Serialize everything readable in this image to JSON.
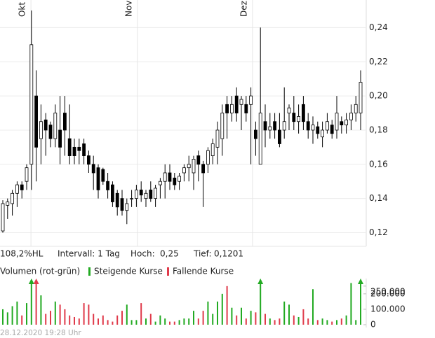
{
  "chart_data": {
    "type": "candlestick",
    "ylim": [
      0.112,
      0.25
    ],
    "yticks": [
      {
        "value": 0.12,
        "label": "0,12"
      },
      {
        "value": 0.14,
        "label": "0,14"
      },
      {
        "value": 0.16,
        "label": "0,16"
      },
      {
        "value": 0.18,
        "label": "0,18"
      },
      {
        "value": 0.2,
        "label": "0,20"
      },
      {
        "value": 0.22,
        "label": "0,22"
      },
      {
        "value": 0.24,
        "label": "0,24"
      }
    ],
    "xticks": [
      {
        "value": 5.9,
        "label": "Okt"
      },
      {
        "value": 28.2,
        "label": "Nov"
      },
      {
        "value": 52.35,
        "label": "Dez"
      }
    ],
    "open": [
      0.121,
      0.136,
      0.137,
      0.143,
      0.148,
      0.15,
      0.16,
      0.2,
      0.175,
      0.186,
      0.183,
      0.175,
      0.18,
      0.19,
      0.175,
      0.17,
      0.17,
      0.172,
      0.165,
      0.16,
      0.158,
      0.157,
      0.15,
      0.148,
      0.143,
      0.14,
      0.133,
      0.14,
      0.14,
      0.145,
      0.14,
      0.145,
      0.14,
      0.148,
      0.15,
      0.155,
      0.152,
      0.15,
      0.155,
      0.158,
      0.155,
      0.165,
      0.16,
      0.16,
      0.165,
      0.17,
      0.175,
      0.195,
      0.19,
      0.2,
      0.195,
      0.195,
      0.195,
      0.18,
      0.16,
      0.185,
      0.18,
      0.185,
      0.18,
      0.18,
      0.19,
      0.19,
      0.185,
      0.195,
      0.185,
      0.18,
      0.182,
      0.176,
      0.18,
      0.183,
      0.18,
      0.185,
      0.183,
      0.186,
      0.19,
      0.19
    ],
    "high": [
      0.139,
      0.14,
      0.145,
      0.15,
      0.15,
      0.16,
      0.25,
      0.215,
      0.195,
      0.19,
      0.185,
      0.195,
      0.2,
      0.2,
      0.195,
      0.175,
      0.175,
      0.175,
      0.168,
      0.165,
      0.16,
      0.158,
      0.155,
      0.15,
      0.145,
      0.145,
      0.14,
      0.145,
      0.148,
      0.15,
      0.145,
      0.15,
      0.148,
      0.152,
      0.16,
      0.16,
      0.155,
      0.155,
      0.16,
      0.165,
      0.165,
      0.168,
      0.162,
      0.17,
      0.175,
      0.185,
      0.195,
      0.2,
      0.2,
      0.205,
      0.2,
      0.2,
      0.205,
      0.185,
      0.24,
      0.195,
      0.19,
      0.19,
      0.19,
      0.205,
      0.195,
      0.2,
      0.195,
      0.2,
      0.19,
      0.188,
      0.185,
      0.185,
      0.19,
      0.186,
      0.2,
      0.188,
      0.19,
      0.195,
      0.2,
      0.215
    ],
    "low": [
      0.12,
      0.128,
      0.13,
      0.135,
      0.14,
      0.145,
      0.145,
      0.15,
      0.16,
      0.165,
      0.17,
      0.17,
      0.16,
      0.165,
      0.16,
      0.16,
      0.16,
      0.16,
      0.155,
      0.145,
      0.14,
      0.148,
      0.14,
      0.135,
      0.13,
      0.13,
      0.125,
      0.135,
      0.135,
      0.138,
      0.135,
      0.138,
      0.135,
      0.14,
      0.14,
      0.145,
      0.145,
      0.145,
      0.15,
      0.15,
      0.145,
      0.15,
      0.135,
      0.155,
      0.16,
      0.16,
      0.165,
      0.175,
      0.185,
      0.185,
      0.18,
      0.185,
      0.16,
      0.165,
      0.16,
      0.17,
      0.175,
      0.175,
      0.17,
      0.175,
      0.18,
      0.18,
      0.178,
      0.18,
      0.175,
      0.172,
      0.175,
      0.17,
      0.178,
      0.175,
      0.175,
      0.178,
      0.178,
      0.18,
      0.185,
      0.18
    ],
    "close": [
      0.137,
      0.138,
      0.143,
      0.148,
      0.145,
      0.158,
      0.23,
      0.17,
      0.185,
      0.18,
      0.175,
      0.19,
      0.17,
      0.18,
      0.165,
      0.165,
      0.168,
      0.165,
      0.16,
      0.155,
      0.145,
      0.15,
      0.145,
      0.138,
      0.135,
      0.133,
      0.137,
      0.14,
      0.145,
      0.142,
      0.143,
      0.14,
      0.146,
      0.15,
      0.155,
      0.15,
      0.148,
      0.153,
      0.158,
      0.16,
      0.163,
      0.16,
      0.155,
      0.168,
      0.172,
      0.18,
      0.19,
      0.19,
      0.195,
      0.19,
      0.198,
      0.19,
      0.2,
      0.175,
      0.19,
      0.18,
      0.182,
      0.18,
      0.172,
      0.185,
      0.193,
      0.185,
      0.188,
      0.185,
      0.18,
      0.183,
      0.178,
      0.18,
      0.185,
      0.178,
      0.19,
      0.183,
      0.186,
      0.19,
      0.195,
      0.208
    ],
    "volume": [
      100000,
      80000,
      120000,
      150000,
      60000,
      140000,
      400000,
      350000,
      190000,
      70000,
      90000,
      150000,
      130000,
      100000,
      60000,
      50000,
      40000,
      140000,
      130000,
      70000,
      40000,
      60000,
      30000,
      20000,
      60000,
      90000,
      130000,
      30000,
      30000,
      140000,
      40000,
      70000,
      20000,
      60000,
      40000,
      20000,
      20000,
      30000,
      40000,
      40000,
      90000,
      40000,
      90000,
      150000,
      70000,
      150000,
      200000,
      250000,
      110000,
      60000,
      110000,
      40000,
      90000,
      80000,
      500000,
      70000,
      40000,
      30000,
      40000,
      150000,
      130000,
      60000,
      50000,
      100000,
      40000,
      230000,
      30000,
      40000,
      30000,
      20000,
      30000,
      40000,
      60000,
      270000,
      30000,
      400000
    ],
    "volume_ylim": [
      0,
      290000
    ],
    "volume_yticks": [
      0,
      {
        "value": 100000,
        "label": "100.000"
      },
      {
        "value": 200000,
        "label": "200.000"
      },
      {
        "value": 250000,
        "label": "250.000"
      }
    ],
    "up_color": "#22aa22",
    "down_color": "#e03a4a",
    "grid": true,
    "stats": "108,2%HL",
    "interval": "Intervall: 1 Tag",
    "high_label": "Hoch:",
    "high_value": "0,25",
    "low_label": "Tief:",
    "low_value": "0,1201",
    "volume_title": "Volumen (rot-grün)",
    "legend_up": "Steigende Kurse",
    "legend_down": "Fallende Kurse",
    "timestamp": "28.12.2020 19:28 Uhr"
  }
}
